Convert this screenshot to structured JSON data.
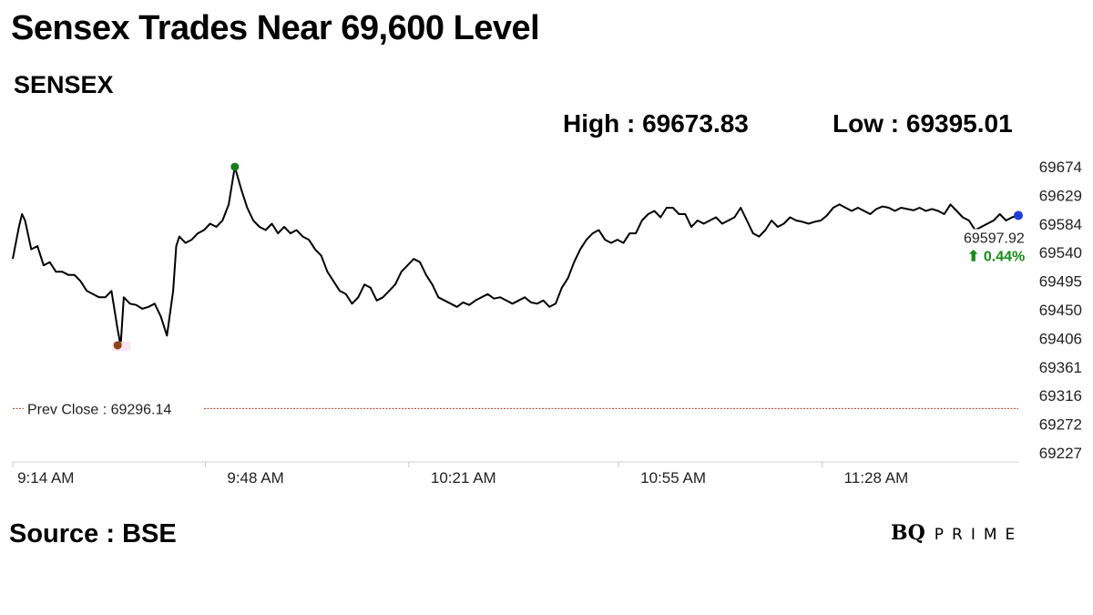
{
  "header": {
    "title": "Sensex Trades Near 69,600 Level",
    "subtitle": "SENSEX",
    "high_text": "High : 69673.83",
    "low_text": "Low : 69395.01"
  },
  "footer": {
    "source": "Source : BSE",
    "logo_bq": "BQ",
    "logo_prime": "PRIME"
  },
  "colors": {
    "line": "#000000",
    "high_marker": "#1a7a1a",
    "low_marker": "#8b4513",
    "last_marker": "#1f3fd6",
    "prev_close_line": "#b03a1a",
    "change_text": "#1a8a1a"
  },
  "chart_data": {
    "type": "line",
    "title": "Sensex Trades Near 69,600 Level",
    "xlabel": "",
    "ylabel": "",
    "ylim": [
      69227,
      69674
    ],
    "y_ticks": [
      "69674",
      "69629",
      "69584",
      "69540",
      "69495",
      "69450",
      "69406",
      "69361",
      "69316",
      "69272",
      "69227"
    ],
    "x_range_minutes": [
      0,
      163
    ],
    "x_ticks": [
      {
        "minute": 4,
        "label": "9:14 AM"
      },
      {
        "minute": 38,
        "label": "9:48 AM"
      },
      {
        "minute": 71,
        "label": "10:21 AM"
      },
      {
        "minute": 105,
        "label": "10:55 AM"
      },
      {
        "minute": 138,
        "label": "11:28 AM"
      }
    ],
    "grid": false,
    "prev_close": {
      "value": 69296.14,
      "label": "Prev Close : 69296.14"
    },
    "high": {
      "minute": 36,
      "value": 69673.83
    },
    "low": {
      "minute": 17,
      "value": 69395.01
    },
    "last": {
      "minute": 163,
      "value": 69597.92,
      "label": "69597.92",
      "change_label": "⬆ 0.44%"
    },
    "series": [
      {
        "points": [
          [
            0,
            69530
          ],
          [
            1,
            69580
          ],
          [
            1.5,
            69600
          ],
          [
            2,
            69590
          ],
          [
            3,
            69545
          ],
          [
            4,
            69550
          ],
          [
            5,
            69520
          ],
          [
            6,
            69525
          ],
          [
            7,
            69510
          ],
          [
            8,
            69510
          ],
          [
            9,
            69505
          ],
          [
            10,
            69505
          ],
          [
            11,
            69495
          ],
          [
            12,
            69480
          ],
          [
            13,
            69475
          ],
          [
            14,
            69470
          ],
          [
            15,
            69470
          ],
          [
            16,
            69480
          ],
          [
            17,
            69420
          ],
          [
            17.5,
            69395
          ],
          [
            18,
            69470
          ],
          [
            19,
            69460
          ],
          [
            20,
            69458
          ],
          [
            21,
            69452
          ],
          [
            22,
            69455
          ],
          [
            23,
            69460
          ],
          [
            24,
            69440
          ],
          [
            25,
            69410
          ],
          [
            26,
            69480
          ],
          [
            26.5,
            69550
          ],
          [
            27,
            69565
          ],
          [
            28,
            69555
          ],
          [
            29,
            69560
          ],
          [
            30,
            69570
          ],
          [
            31,
            69575
          ],
          [
            32,
            69585
          ],
          [
            33,
            69580
          ],
          [
            34,
            69590
          ],
          [
            35,
            69615
          ],
          [
            36,
            69673.83
          ],
          [
            37,
            69640
          ],
          [
            38,
            69610
          ],
          [
            39,
            69590
          ],
          [
            40,
            69580
          ],
          [
            41,
            69575
          ],
          [
            42,
            69585
          ],
          [
            43,
            69570
          ],
          [
            44,
            69580
          ],
          [
            45,
            69570
          ],
          [
            46,
            69575
          ],
          [
            47,
            69565
          ],
          [
            48,
            69560
          ],
          [
            49,
            69545
          ],
          [
            50,
            69535
          ],
          [
            51,
            69510
          ],
          [
            52,
            69495
          ],
          [
            53,
            69480
          ],
          [
            54,
            69475
          ],
          [
            55,
            69460
          ],
          [
            56,
            69470
          ],
          [
            57,
            69490
          ],
          [
            58,
            69485
          ],
          [
            59,
            69465
          ],
          [
            60,
            69470
          ],
          [
            61,
            69480
          ],
          [
            62,
            69490
          ],
          [
            63,
            69510
          ],
          [
            64,
            69520
          ],
          [
            65,
            69530
          ],
          [
            66,
            69525
          ],
          [
            67,
            69505
          ],
          [
            68,
            69490
          ],
          [
            69,
            69470
          ],
          [
            70,
            69465
          ],
          [
            71,
            69460
          ],
          [
            72,
            69455
          ],
          [
            73,
            69462
          ],
          [
            74,
            69458
          ],
          [
            75,
            69465
          ],
          [
            76,
            69470
          ],
          [
            77,
            69475
          ],
          [
            78,
            69468
          ],
          [
            79,
            69470
          ],
          [
            80,
            69465
          ],
          [
            81,
            69460
          ],
          [
            82,
            69465
          ],
          [
            83,
            69470
          ],
          [
            84,
            69462
          ],
          [
            85,
            69460
          ],
          [
            86,
            69465
          ],
          [
            87,
            69455
          ],
          [
            88,
            69460
          ],
          [
            89,
            69485
          ],
          [
            90,
            69500
          ],
          [
            91,
            69525
          ],
          [
            92,
            69545
          ],
          [
            93,
            69560
          ],
          [
            94,
            69570
          ],
          [
            95,
            69575
          ],
          [
            96,
            69560
          ],
          [
            97,
            69555
          ],
          [
            98,
            69560
          ],
          [
            99,
            69555
          ],
          [
            100,
            69570
          ],
          [
            101,
            69570
          ],
          [
            102,
            69590
          ],
          [
            103,
            69600
          ],
          [
            104,
            69605
          ],
          [
            105,
            69595
          ],
          [
            106,
            69610
          ],
          [
            107,
            69610
          ],
          [
            108,
            69600
          ],
          [
            109,
            69600
          ],
          [
            110,
            69580
          ],
          [
            111,
            69590
          ],
          [
            112,
            69585
          ],
          [
            113,
            69590
          ],
          [
            114,
            69595
          ],
          [
            115,
            69585
          ],
          [
            116,
            69590
          ],
          [
            117,
            69595
          ],
          [
            118,
            69610
          ],
          [
            119,
            69590
          ],
          [
            120,
            69570
          ],
          [
            121,
            69565
          ],
          [
            122,
            69575
          ],
          [
            123,
            69590
          ],
          [
            124,
            69580
          ],
          [
            125,
            69585
          ],
          [
            126,
            69595
          ],
          [
            127,
            69590
          ],
          [
            128,
            69588
          ],
          [
            129,
            69585
          ],
          [
            130,
            69588
          ],
          [
            131,
            69590
          ],
          [
            132,
            69598
          ],
          [
            133,
            69610
          ],
          [
            134,
            69615
          ],
          [
            135,
            69610
          ],
          [
            136,
            69605
          ],
          [
            137,
            69610
          ],
          [
            138,
            69605
          ],
          [
            139,
            69600
          ],
          [
            140,
            69608
          ],
          [
            141,
            69612
          ],
          [
            142,
            69610
          ],
          [
            143,
            69605
          ],
          [
            144,
            69610
          ],
          [
            145,
            69608
          ],
          [
            146,
            69606
          ],
          [
            147,
            69610
          ],
          [
            148,
            69605
          ],
          [
            149,
            69608
          ],
          [
            150,
            69605
          ],
          [
            151,
            69600
          ],
          [
            152,
            69615
          ],
          [
            153,
            69605
          ],
          [
            154,
            69595
          ],
          [
            155,
            69590
          ],
          [
            156,
            69575
          ],
          [
            157,
            69580
          ],
          [
            158,
            69585
          ],
          [
            159,
            69590
          ],
          [
            160,
            69600
          ],
          [
            161,
            69590
          ],
          [
            162,
            69595
          ],
          [
            163,
            69597.92
          ]
        ]
      }
    ]
  }
}
